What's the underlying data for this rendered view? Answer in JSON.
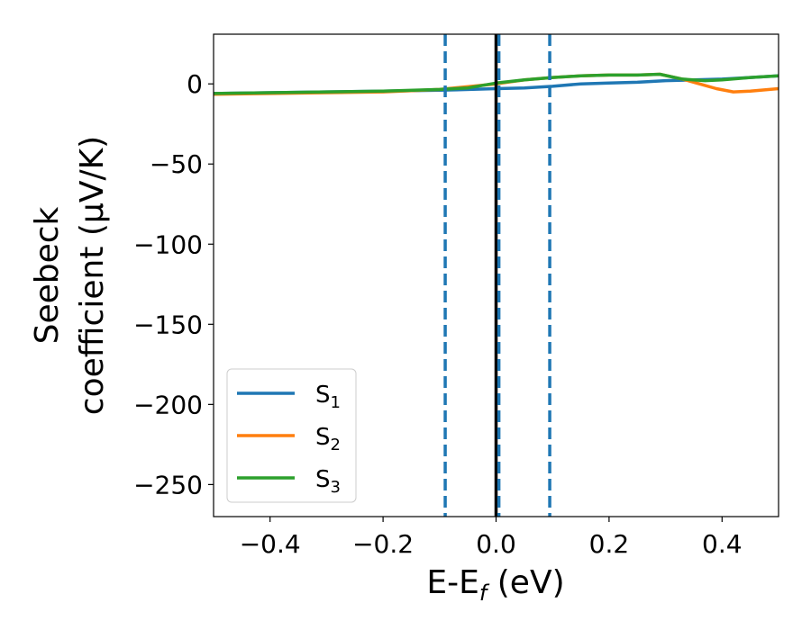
{
  "chart_data": {
    "type": "line",
    "xlabel": "E-E",
    "xlabel_sub": "f",
    "xlabel_unit": " (eV)",
    "ylabel_line1": "Seebeck",
    "ylabel_line2": "coefficient  (μV/K)",
    "xlim": [
      -0.5,
      0.5
    ],
    "ylim": [
      -270,
      31
    ],
    "xticks": [
      -0.4,
      -0.2,
      0.0,
      0.2,
      0.4
    ],
    "xtick_labels": [
      "−0.4",
      "−0.2",
      "0.0",
      "0.2",
      "0.4"
    ],
    "yticks": [
      0,
      -50,
      -100,
      -150,
      -200,
      -250
    ],
    "ytick_labels": [
      "0",
      "−50",
      "−100",
      "−150",
      "−200",
      "−250"
    ],
    "grid": false,
    "legend_position": "lower-left",
    "vlines": [
      {
        "x": 0.0,
        "style": "solid",
        "color": "#000000"
      },
      {
        "x": -0.09,
        "style": "dashed",
        "color": "#1f77b4"
      },
      {
        "x": 0.005,
        "style": "dashed",
        "color": "#1f77b4"
      },
      {
        "x": 0.095,
        "style": "dashed",
        "color": "#1f77b4"
      }
    ],
    "series": [
      {
        "name": "S",
        "name_sub": "1",
        "color": "#1f77b4",
        "x": [
          -0.5,
          -0.4,
          -0.3,
          -0.2,
          -0.1,
          0.0,
          0.05,
          0.1,
          0.15,
          0.2,
          0.25,
          0.3,
          0.35,
          0.4,
          0.45,
          0.5
        ],
        "y": [
          -6,
          -5.5,
          -5,
          -4.5,
          -4,
          -3,
          -2.5,
          -1.5,
          0,
          0.5,
          1,
          2,
          2.5,
          3,
          4,
          5
        ]
      },
      {
        "name": "S",
        "name_sub": "2",
        "color": "#ff7f0e",
        "x": [
          -0.5,
          -0.4,
          -0.3,
          -0.2,
          -0.1,
          0.0,
          0.05,
          0.1,
          0.15,
          0.2,
          0.25,
          0.29,
          0.33,
          0.36,
          0.39,
          0.42,
          0.45,
          0.5
        ],
        "y": [
          -6.5,
          -6,
          -5.5,
          -5,
          -3.5,
          0,
          2.5,
          4,
          5,
          5.5,
          5.5,
          6,
          3,
          0,
          -3,
          -5,
          -4.5,
          -3
        ]
      },
      {
        "name": "S",
        "name_sub": "3",
        "color": "#2ca02c",
        "x": [
          -0.5,
          -0.4,
          -0.3,
          -0.2,
          -0.1,
          -0.05,
          0.0,
          0.05,
          0.1,
          0.15,
          0.2,
          0.25,
          0.29,
          0.33,
          0.37,
          0.4,
          0.45,
          0.5
        ],
        "y": [
          -6,
          -5.5,
          -5,
          -4.5,
          -3.5,
          -2.5,
          0.5,
          2.5,
          4,
          5,
          5.5,
          5.5,
          6,
          3,
          2,
          2.5,
          4,
          5
        ]
      }
    ]
  }
}
